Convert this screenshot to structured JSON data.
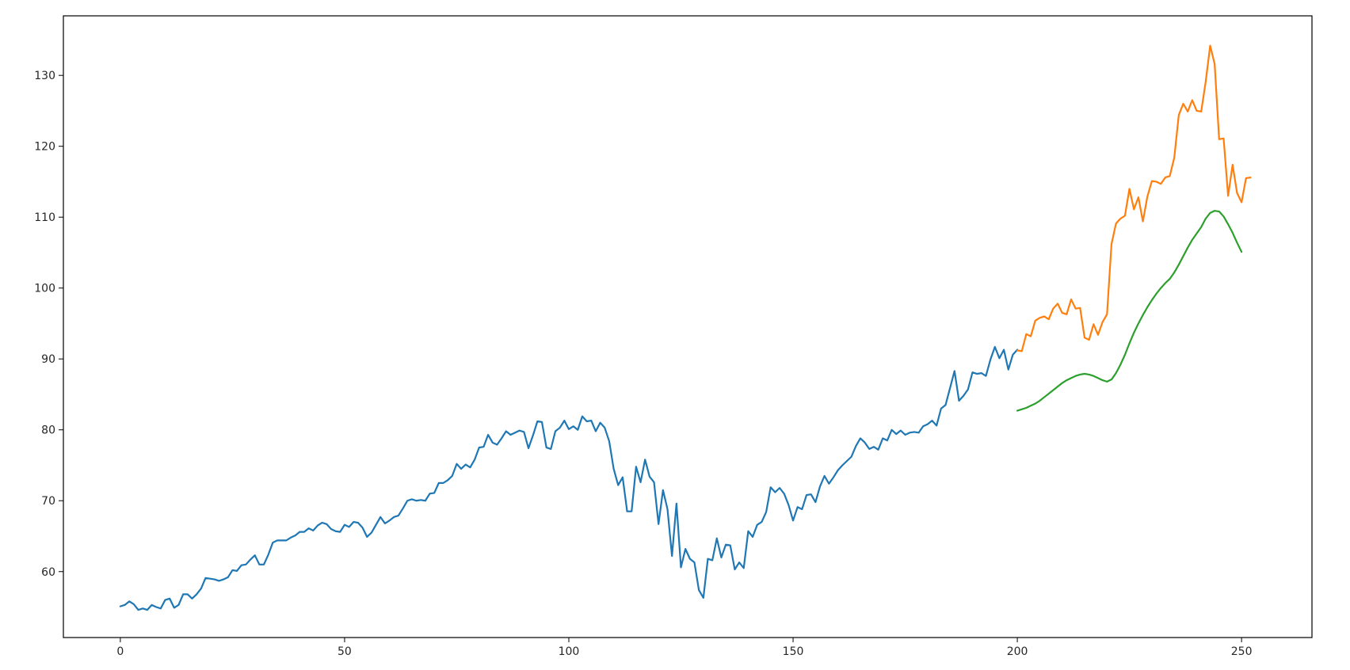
{
  "chart_data": {
    "type": "line",
    "title": "",
    "xlabel": "",
    "ylabel": "",
    "xlim": [
      -12.7,
      265.7
    ],
    "ylim": [
      50.7,
      138.4
    ],
    "grid": false,
    "legend": "none",
    "x_ticks": [
      0,
      50,
      100,
      150,
      200,
      250
    ],
    "x_tick_labels": [
      "0",
      "50",
      "100",
      "150",
      "200",
      "250"
    ],
    "y_ticks": [
      60,
      70,
      80,
      90,
      100,
      110,
      120,
      130
    ],
    "y_tick_labels": [
      "60",
      "70",
      "80",
      "90",
      "100",
      "110",
      "120",
      "130"
    ],
    "series": [
      {
        "color": "#1f77b4",
        "x_start": 0,
        "values": [
          55.1,
          55.3,
          55.8,
          55.4,
          54.6,
          54.8,
          54.6,
          55.3,
          55.0,
          54.8,
          56.0,
          56.2,
          54.9,
          55.3,
          56.8,
          56.8,
          56.2,
          56.8,
          57.6,
          59.1,
          59.0,
          58.9,
          58.7,
          58.9,
          59.2,
          60.2,
          60.1,
          60.9,
          61.0,
          61.7,
          62.3,
          61.0,
          61.0,
          62.4,
          64.1,
          64.4,
          64.4,
          64.4,
          64.8,
          65.1,
          65.6,
          65.6,
          66.1,
          65.8,
          66.5,
          66.9,
          66.7,
          66.0,
          65.7,
          65.6,
          66.6,
          66.3,
          67.0,
          66.9,
          66.2,
          64.9,
          65.5,
          66.6,
          67.7,
          66.8,
          67.2,
          67.7,
          67.9,
          68.9,
          70.0,
          70.2,
          70.0,
          70.1,
          70.0,
          71.0,
          71.1,
          72.5,
          72.5,
          72.9,
          73.5,
          75.2,
          74.5,
          75.1,
          74.7,
          75.8,
          77.5,
          77.6,
          79.3,
          78.2,
          77.9,
          78.8,
          79.8,
          79.3,
          79.6,
          79.9,
          79.7,
          77.4,
          79.2,
          81.2,
          81.1,
          77.5,
          77.3,
          79.8,
          80.3,
          81.3,
          80.1,
          80.5,
          80.0,
          81.9,
          81.2,
          81.3,
          79.8,
          81.0,
          80.3,
          78.4,
          74.5,
          72.2,
          73.3,
          68.5,
          68.5,
          74.8,
          72.6,
          75.8,
          73.4,
          72.6,
          66.7,
          71.5,
          68.8,
          62.2,
          69.6,
          60.6,
          63.2,
          61.8,
          61.3,
          57.4,
          56.3,
          61.8,
          61.6,
          64.7,
          62.0,
          63.8,
          63.7,
          60.3,
          61.3,
          60.5,
          65.7,
          64.9,
          66.6,
          67.0,
          68.4,
          71.9,
          71.2,
          71.8,
          71.0,
          69.4,
          67.2,
          69.1,
          68.8,
          70.8,
          70.9,
          69.8,
          72.0,
          73.5,
          72.4,
          73.3,
          74.3,
          75.0,
          75.6,
          76.2,
          77.7,
          78.8,
          78.2,
          77.3,
          77.6,
          77.2,
          78.8,
          78.5,
          80.0,
          79.4,
          79.9,
          79.3,
          79.6,
          79.7,
          79.6,
          80.5,
          80.8,
          81.3,
          80.6,
          83.0,
          83.5,
          85.9,
          88.3,
          84.1,
          84.8,
          85.7,
          88.1,
          87.9,
          88.0,
          87.6,
          89.9,
          91.7,
          90.1,
          91.3,
          88.5,
          90.6,
          91.3
        ]
      },
      {
        "color": "#ff7f0e",
        "x_start": 200,
        "values": [
          91.2,
          91.1,
          93.5,
          93.2,
          95.4,
          95.8,
          96.0,
          95.6,
          97.1,
          97.8,
          96.5,
          96.3,
          98.4,
          97.1,
          97.2,
          93.0,
          92.7,
          94.9,
          93.4,
          95.2,
          96.3,
          106.2,
          109.1,
          109.8,
          110.2,
          114.0,
          111.1,
          112.8,
          109.4,
          112.9,
          115.1,
          115.0,
          114.7,
          115.6,
          115.8,
          118.4,
          124.4,
          126.0,
          124.9,
          126.5,
          125.0,
          124.9,
          129.1,
          134.2,
          131.6,
          121.0,
          121.1,
          113.0,
          117.4,
          113.4,
          112.1,
          115.5,
          115.6
        ]
      },
      {
        "color": "#2ca02c",
        "x_start": 200,
        "values": [
          82.7,
          82.9,
          83.1,
          83.4,
          83.7,
          84.1,
          84.6,
          85.1,
          85.6,
          86.1,
          86.6,
          87.0,
          87.3,
          87.6,
          87.8,
          87.9,
          87.8,
          87.6,
          87.3,
          87.0,
          86.8,
          87.1,
          88.0,
          89.2,
          90.6,
          92.2,
          93.7,
          95.0,
          96.2,
          97.3,
          98.3,
          99.2,
          100.0,
          100.7,
          101.3,
          102.2,
          103.3,
          104.5,
          105.7,
          106.8,
          107.7,
          108.6,
          109.8,
          110.6,
          110.9,
          110.8,
          110.1,
          109.0,
          107.8,
          106.4,
          105.1
        ]
      }
    ]
  }
}
